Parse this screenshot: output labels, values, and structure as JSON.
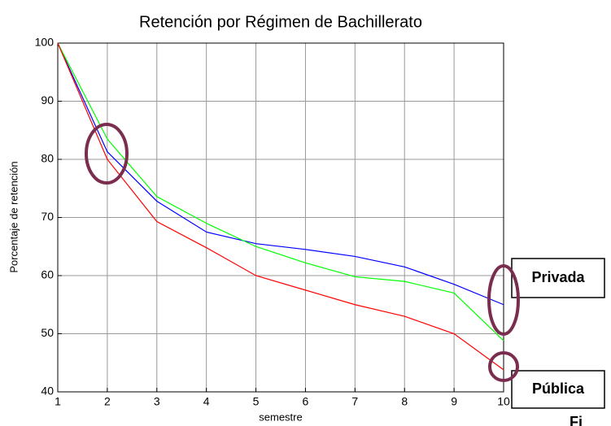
{
  "chart_data": {
    "type": "line",
    "title": "Retención por Régimen de Bachillerato",
    "xlabel": "semestre",
    "ylabel": "Porcentaje de retención",
    "x": [
      1,
      2,
      3,
      4,
      5,
      6,
      7,
      8,
      9,
      10
    ],
    "series": [
      {
        "color": "#0000ff",
        "values": [
          100,
          81.3,
          72.8,
          67.5,
          65.5,
          64.5,
          63.3,
          61.5,
          58.5,
          55
        ]
      },
      {
        "color": "#00ff00",
        "values": [
          100,
          83.5,
          73.6,
          69,
          65,
          62.2,
          59.8,
          59,
          57,
          48.8
        ]
      },
      {
        "color": "#ff0000",
        "values": [
          100,
          80,
          69.3,
          64.8,
          60,
          57.5,
          55,
          53,
          50,
          43.8
        ]
      }
    ],
    "xlim": [
      1,
      10
    ],
    "xticks": [
      1,
      2,
      3,
      4,
      5,
      6,
      7,
      8,
      9,
      10
    ],
    "ylim": [
      40,
      100
    ],
    "yticks": [
      40,
      50,
      60,
      70,
      80,
      90,
      100
    ],
    "grid": true,
    "annotations": [
      "Privada",
      "Pública",
      "Fi"
    ]
  }
}
